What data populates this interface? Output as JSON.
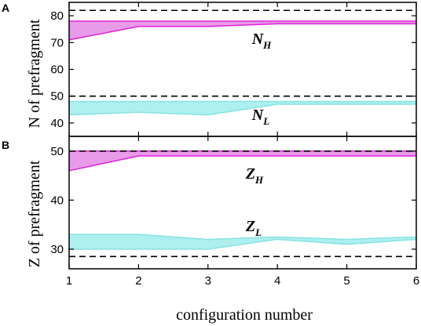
{
  "chart_data": [
    {
      "panel": "A",
      "type": "area",
      "ylabel": "N of prefragment",
      "xlim": [
        1,
        6
      ],
      "ylim": [
        35,
        85
      ],
      "yticks": [
        40,
        50,
        60,
        70,
        80
      ],
      "reference_lines": [
        82,
        50
      ],
      "series": [
        {
          "name": "N",
          "name_sub": "H",
          "color": "#e020d8",
          "fill": "#e79be8",
          "x": [
            1,
            2,
            3,
            4,
            5,
            6
          ],
          "lower": [
            71,
            76,
            76,
            77,
            77,
            77
          ],
          "upper": [
            78,
            78,
            78,
            78,
            78,
            78
          ]
        },
        {
          "name": "N",
          "name_sub": "L",
          "color": "#86e3e3",
          "fill": "#aeeff0",
          "x": [
            1,
            2,
            3,
            4,
            5,
            6
          ],
          "lower": [
            43,
            44,
            43,
            47,
            47,
            47
          ],
          "upper": [
            48,
            48,
            48,
            48,
            48,
            48
          ]
        }
      ]
    },
    {
      "panel": "B",
      "type": "area",
      "ylabel": "Z of prefragment",
      "xlabel": "configuration number",
      "xlim": [
        1,
        6
      ],
      "ylim": [
        26,
        53
      ],
      "yticks": [
        30,
        40,
        50
      ],
      "xticks": [
        1,
        2,
        3,
        4,
        5,
        6
      ],
      "reference_lines": [
        50,
        28.5
      ],
      "series": [
        {
          "name": "Z",
          "name_sub": "H",
          "color": "#e020d8",
          "fill": "#e79be8",
          "x": [
            1,
            2,
            3,
            4,
            5,
            6
          ],
          "lower": [
            46,
            49,
            49,
            49,
            49,
            49
          ],
          "upper": [
            50,
            50,
            50,
            50,
            50,
            50
          ]
        },
        {
          "name": "Z",
          "name_sub": "L",
          "color": "#86e3e3",
          "fill": "#aeeff0",
          "x": [
            1,
            2,
            3,
            4,
            5,
            6
          ],
          "lower": [
            30,
            30,
            30,
            32,
            31,
            32
          ],
          "upper": [
            33,
            33,
            32,
            32.5,
            32,
            32.5
          ]
        }
      ]
    }
  ]
}
